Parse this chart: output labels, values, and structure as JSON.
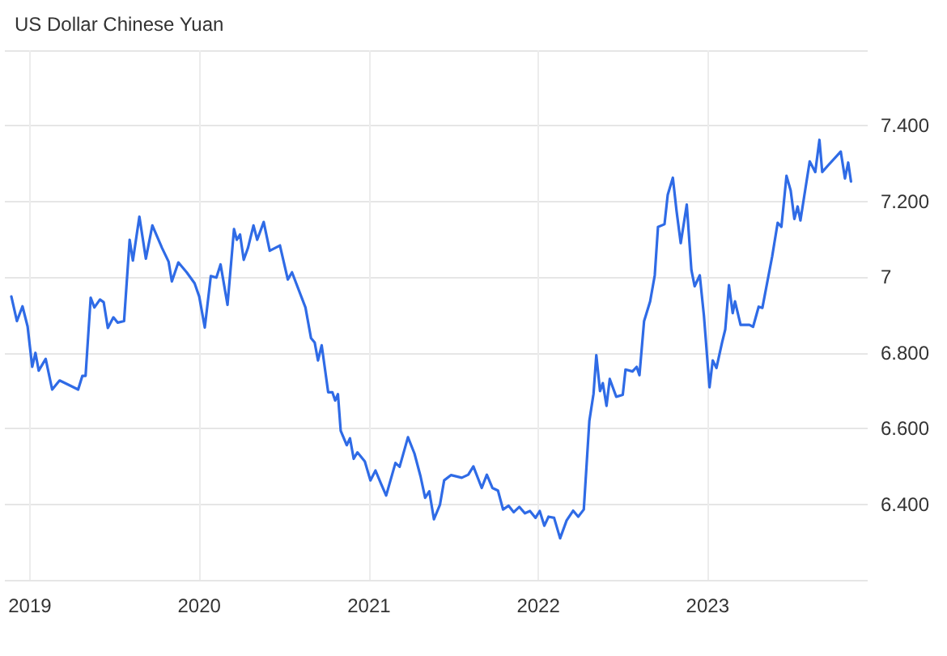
{
  "chart_data": {
    "type": "line",
    "title": "US Dollar Chinese Yuan",
    "x": [
      "2018-11-22",
      "2018-12-04",
      "2018-12-16",
      "2018-12-27",
      "2019-01-06",
      "2019-01-13",
      "2019-01-20",
      "2019-02-04",
      "2019-02-18",
      "2019-03-06",
      "2019-03-23",
      "2019-04-15",
      "2019-04-24",
      "2019-05-01",
      "2019-05-12",
      "2019-05-20",
      "2019-06-01",
      "2019-06-09",
      "2019-06-18",
      "2019-06-30",
      "2019-07-09",
      "2019-07-23",
      "2019-08-04",
      "2019-08-11",
      "2019-08-25",
      "2019-09-08",
      "2019-09-22",
      "2019-10-13",
      "2019-10-27",
      "2019-11-03",
      "2019-11-17",
      "2019-12-05",
      "2019-12-22",
      "2020-01-01",
      "2020-01-13",
      "2020-01-26",
      "2020-02-07",
      "2020-02-16",
      "2020-03-02",
      "2020-03-16",
      "2020-03-22",
      "2020-03-29",
      "2020-04-06",
      "2020-04-15",
      "2020-04-27",
      "2020-05-05",
      "2020-05-19",
      "2020-06-01",
      "2020-06-23",
      "2020-07-10",
      "2020-07-19",
      "2020-08-17",
      "2020-08-29",
      "2020-09-06",
      "2020-09-13",
      "2020-09-21",
      "2020-10-05",
      "2020-10-14",
      "2020-10-20",
      "2020-10-26",
      "2020-11-01",
      "2020-11-14",
      "2020-11-21",
      "2020-11-29",
      "2020-12-07",
      "2020-12-23",
      "2021-01-04",
      "2021-01-15",
      "2021-01-27",
      "2021-02-07",
      "2021-02-27",
      "2021-03-08",
      "2021-03-26",
      "2021-04-09",
      "2021-04-22",
      "2021-05-02",
      "2021-05-11",
      "2021-05-21",
      "2021-06-03",
      "2021-06-12",
      "2021-06-27",
      "2021-07-20",
      "2021-08-03",
      "2021-08-14",
      "2021-09-01",
      "2021-09-12",
      "2021-09-24",
      "2021-10-06",
      "2021-10-17",
      "2021-10-29",
      "2021-11-09",
      "2021-11-21",
      "2021-12-03",
      "2021-12-14",
      "2021-12-26",
      "2022-01-04",
      "2022-01-14",
      "2022-01-23",
      "2022-02-04",
      "2022-02-17",
      "2022-03-03",
      "2022-03-17",
      "2022-03-28",
      "2022-04-09",
      "2022-04-21",
      "2022-04-30",
      "2022-05-06",
      "2022-05-14",
      "2022-05-20",
      "2022-05-28",
      "2022-06-04",
      "2022-06-18",
      "2022-07-02",
      "2022-07-08",
      "2022-07-23",
      "2022-08-01",
      "2022-08-07",
      "2022-08-17",
      "2022-08-30",
      "2022-09-09",
      "2022-09-16",
      "2022-09-30",
      "2022-10-07",
      "2022-10-18",
      "2022-10-26",
      "2022-11-04",
      "2022-11-17",
      "2022-11-27",
      "2022-12-04",
      "2022-12-15",
      "2022-12-24",
      "2023-01-05",
      "2023-01-12",
      "2023-01-20",
      "2023-02-01",
      "2023-02-08",
      "2023-02-16",
      "2023-02-24",
      "2023-03-01",
      "2023-03-13",
      "2023-04-01",
      "2023-04-09",
      "2023-04-21",
      "2023-04-29",
      "2023-05-20",
      "2023-06-01",
      "2023-06-09",
      "2023-06-20",
      "2023-06-29",
      "2023-07-07",
      "2023-07-14",
      "2023-07-20",
      "2023-08-09",
      "2023-08-21",
      "2023-08-30",
      "2023-09-05",
      "2023-09-18",
      "2023-10-15",
      "2023-10-24",
      "2023-10-31",
      "2023-11-06"
    ],
    "series": [
      {
        "color": "#2f6be6",
        "values": [
          6.949,
          6.884,
          6.923,
          6.87,
          6.763,
          6.8,
          6.753,
          6.784,
          6.703,
          6.727,
          6.717,
          6.703,
          6.739,
          6.739,
          6.946,
          6.92,
          6.941,
          6.934,
          6.866,
          6.894,
          6.88,
          6.884,
          7.099,
          7.044,
          7.16,
          7.049,
          7.137,
          7.077,
          7.041,
          6.989,
          7.039,
          7.013,
          6.984,
          6.949,
          6.867,
          7.003,
          6.999,
          7.034,
          6.927,
          7.127,
          7.099,
          7.113,
          7.046,
          7.077,
          7.137,
          7.099,
          7.146,
          7.07,
          7.084,
          6.994,
          7.013,
          6.92,
          6.839,
          6.827,
          6.78,
          6.82,
          6.696,
          6.696,
          6.674,
          6.691,
          6.594,
          6.556,
          6.574,
          6.52,
          6.537,
          6.513,
          6.463,
          6.489,
          6.454,
          6.423,
          6.509,
          6.499,
          6.577,
          6.534,
          6.474,
          6.417,
          6.434,
          6.36,
          6.399,
          6.463,
          6.477,
          6.47,
          6.478,
          6.5,
          6.443,
          6.478,
          6.443,
          6.436,
          6.386,
          6.396,
          6.379,
          6.393,
          6.376,
          6.382,
          6.364,
          6.382,
          6.343,
          6.367,
          6.364,
          6.31,
          6.357,
          6.383,
          6.367,
          6.386,
          6.62,
          6.692,
          6.794,
          6.699,
          6.72,
          6.66,
          6.731,
          6.684,
          6.689,
          6.756,
          6.751,
          6.763,
          6.741,
          6.884,
          6.936,
          7.005,
          7.133,
          7.14,
          7.218,
          7.263,
          7.175,
          7.09,
          7.192,
          7.019,
          6.976,
          7.005,
          6.898,
          6.709,
          6.78,
          6.76,
          6.827,
          6.862,
          6.979,
          6.905,
          6.936,
          6.874,
          6.874,
          6.869,
          6.922,
          6.919,
          7.054,
          7.144,
          7.133,
          7.268,
          7.229,
          7.154,
          7.187,
          7.15,
          7.306,
          7.278,
          7.363,
          7.278,
          7.296,
          7.332,
          7.261,
          7.303,
          7.253
        ]
      }
    ],
    "xlim": [
      "2018-11-08",
      "2023-12-12"
    ],
    "xticks": [
      "2019",
      "2020",
      "2021",
      "2022",
      "2023"
    ],
    "ylim": [
      6.2,
      7.6
    ],
    "yticks": [
      {
        "value": 6.2,
        "label": null
      },
      {
        "value": 6.4,
        "label": "6.400"
      },
      {
        "value": 6.6,
        "label": "6.600"
      },
      {
        "value": 6.8,
        "label": "6.800"
      },
      {
        "value": 7,
        "label": "7"
      },
      {
        "value": 7.2,
        "label": "7.200"
      },
      {
        "value": 7.4,
        "label": "7.400"
      },
      {
        "value": 7.6,
        "label": null
      }
    ],
    "grid": true,
    "marker": "none",
    "line_style": "solid"
  }
}
